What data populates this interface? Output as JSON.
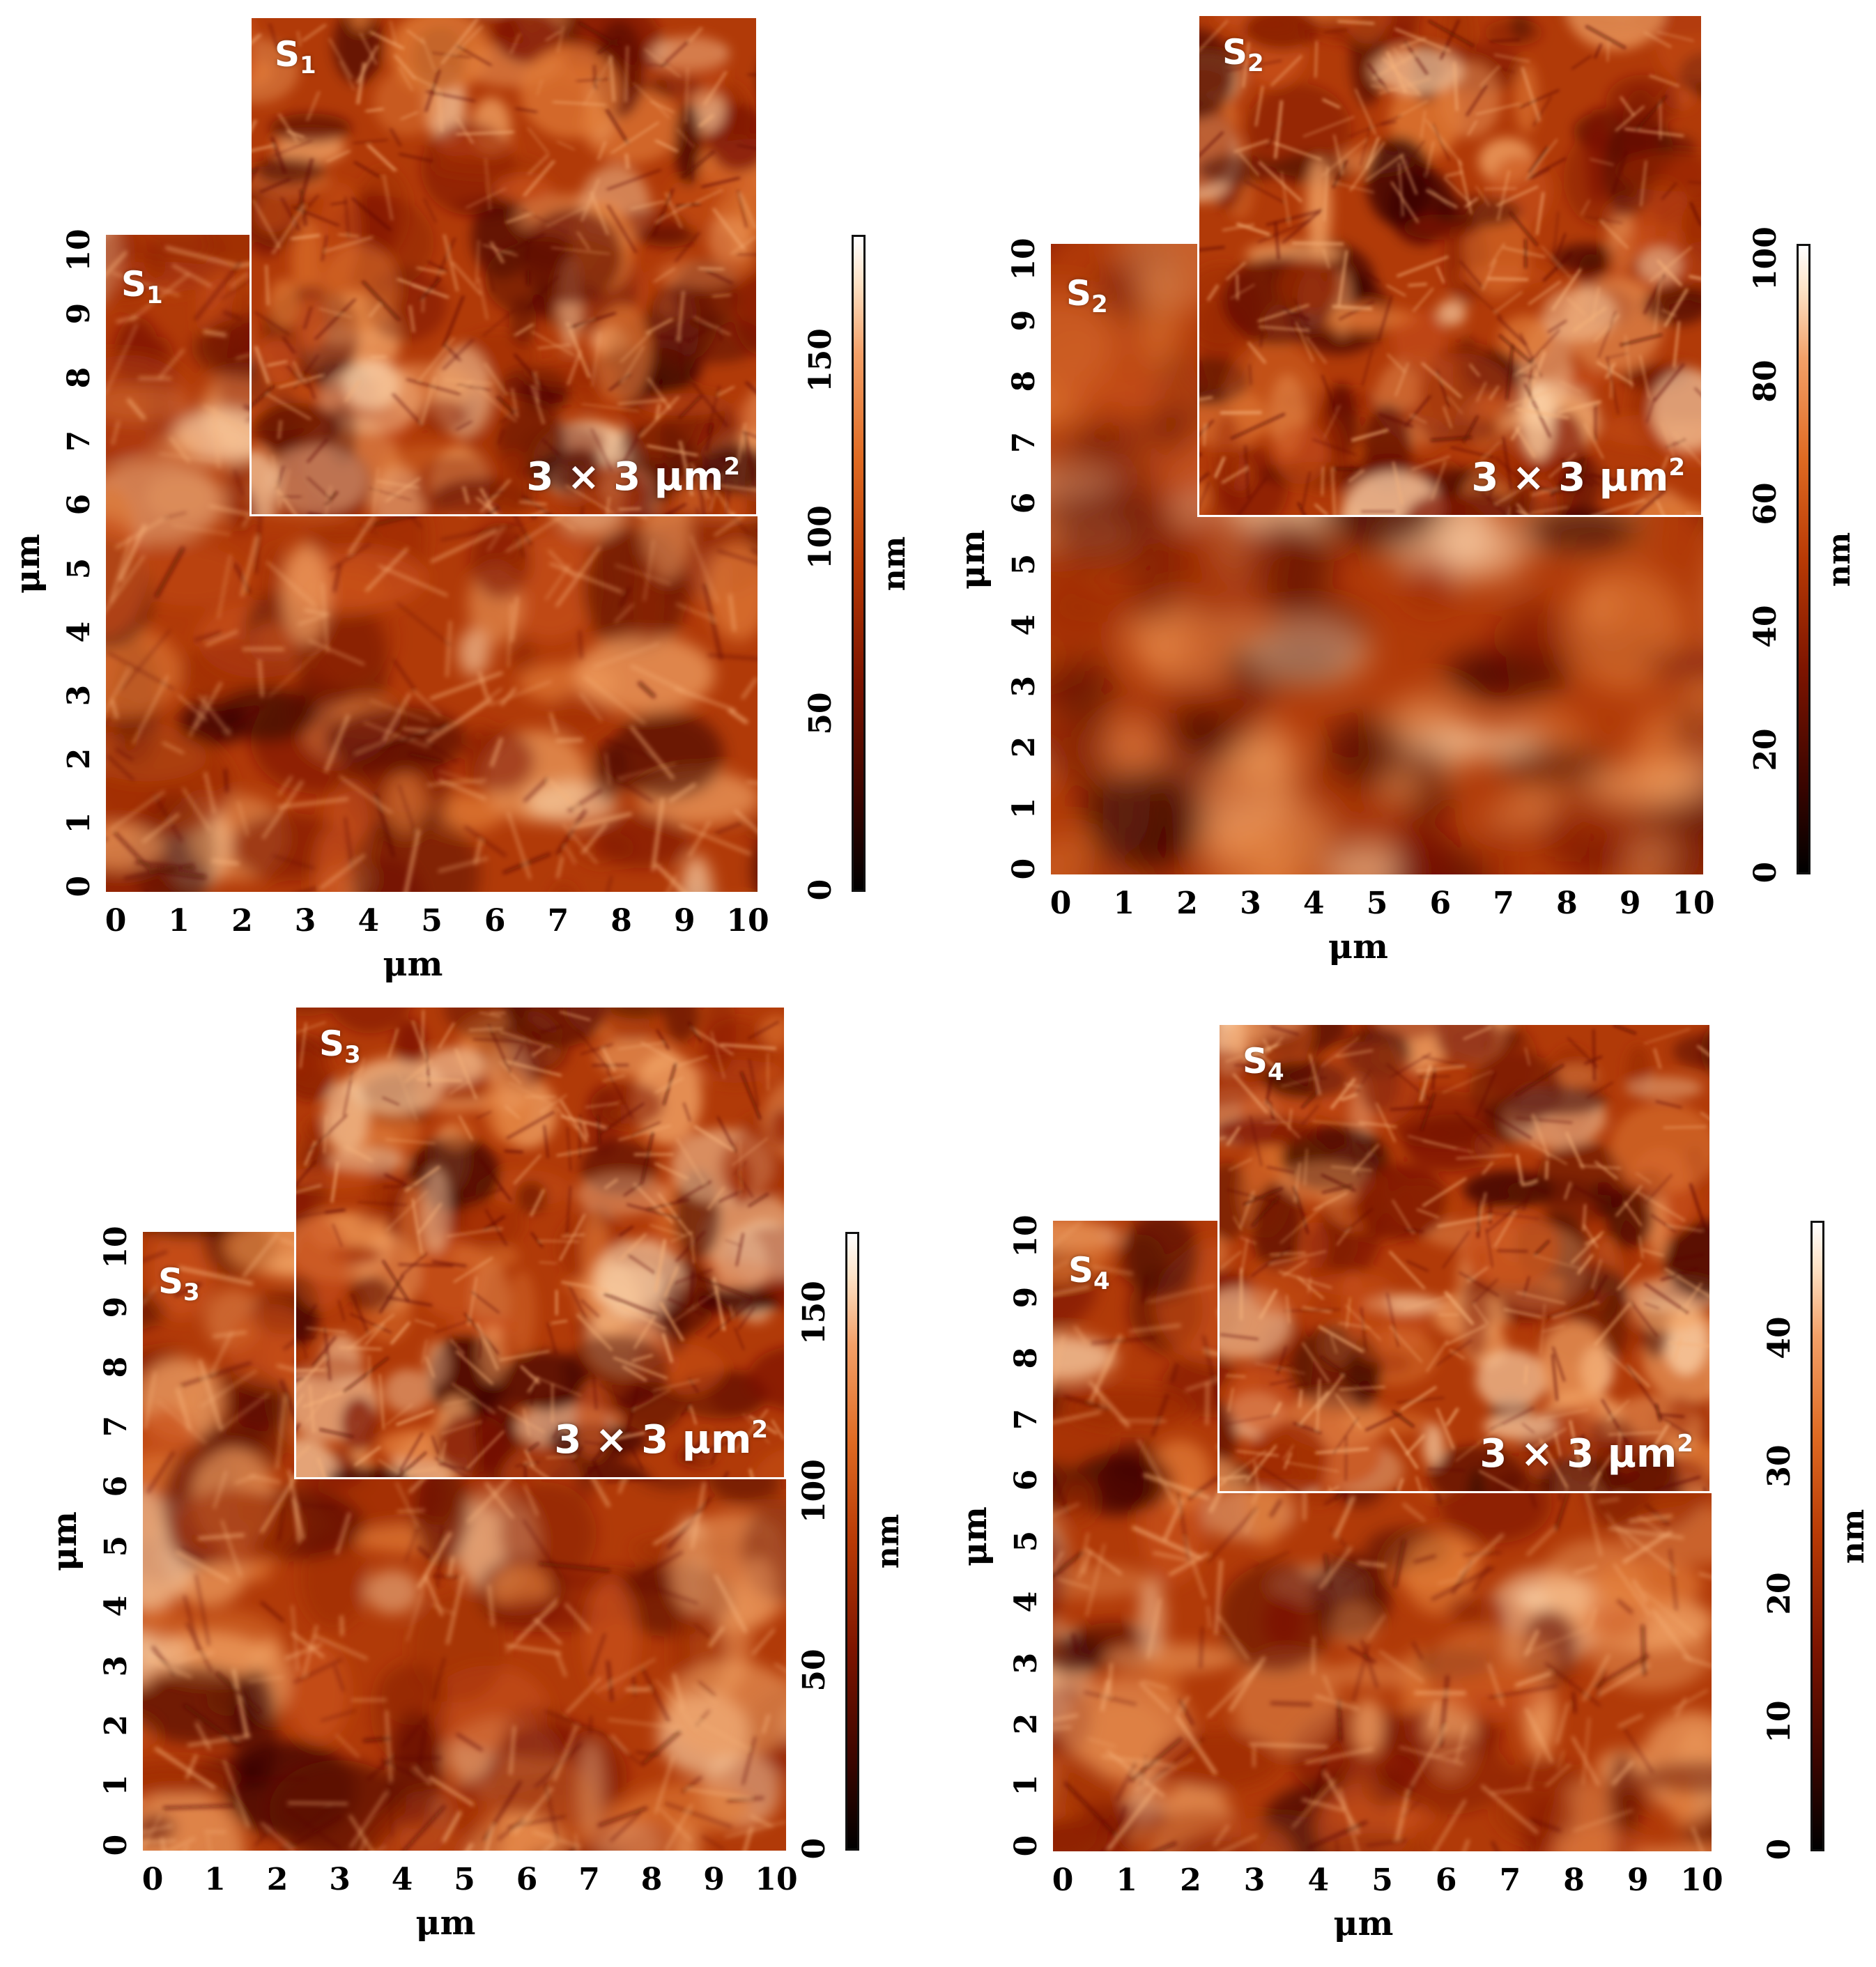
{
  "figure": {
    "panels": [
      {
        "sample_letter": "S",
        "sample_number": "1",
        "scan_label": "3 × 3 μm",
        "scan_label_exp": "2",
        "x_axis_label": "μm",
        "y_axis_label": "μm",
        "x_ticks": [
          "0",
          "1",
          "2",
          "3",
          "4",
          "5",
          "6",
          "7",
          "8",
          "9",
          "10"
        ],
        "y_ticks": [
          "0",
          "1",
          "2",
          "3",
          "4",
          "5",
          "6",
          "7",
          "8",
          "9",
          "10"
        ],
        "colorbar_ticks": [
          "0",
          "50",
          "100",
          "150"
        ],
        "colorbar_unit": "nm",
        "colorbar_max": 185
      },
      {
        "sample_letter": "S",
        "sample_number": "2",
        "scan_label": "3 × 3 μm",
        "scan_label_exp": "2",
        "x_axis_label": "μm",
        "y_axis_label": "μm",
        "x_ticks": [
          "0",
          "1",
          "2",
          "3",
          "4",
          "5",
          "6",
          "7",
          "8",
          "9",
          "10"
        ],
        "y_ticks": [
          "0",
          "1",
          "2",
          "3",
          "4",
          "5",
          "6",
          "7",
          "8",
          "9",
          "10"
        ],
        "colorbar_ticks": [
          "0",
          "20",
          "40",
          "60",
          "80",
          "100"
        ],
        "colorbar_unit": "nm",
        "colorbar_max": 102
      },
      {
        "sample_letter": "S",
        "sample_number": "3",
        "scan_label": "3 × 3 μm",
        "scan_label_exp": "2",
        "x_axis_label": "μm",
        "y_axis_label": "μm",
        "x_ticks": [
          "0",
          "1",
          "2",
          "3",
          "4",
          "5",
          "6",
          "7",
          "8",
          "9",
          "10"
        ],
        "y_ticks": [
          "0",
          "1",
          "2",
          "3",
          "4",
          "5",
          "6",
          "7",
          "8",
          "9",
          "10"
        ],
        "colorbar_ticks": [
          "0",
          "50",
          "100",
          "150"
        ],
        "colorbar_unit": "nm",
        "colorbar_max": 172
      },
      {
        "sample_letter": "S",
        "sample_number": "4",
        "scan_label": "3 × 3 μm",
        "scan_label_exp": "2",
        "x_axis_label": "μm",
        "y_axis_label": "μm",
        "x_ticks": [
          "0",
          "1",
          "2",
          "3",
          "4",
          "5",
          "6",
          "7",
          "8",
          "9",
          "10"
        ],
        "y_ticks": [
          "0",
          "1",
          "2",
          "3",
          "4",
          "5",
          "6",
          "7",
          "8",
          "9",
          "10"
        ],
        "colorbar_ticks": [
          "0",
          "10",
          "20",
          "30",
          "40"
        ],
        "colorbar_unit": "nm",
        "colorbar_max": 49
      }
    ]
  },
  "colors": {
    "colormap": [
      "#000000",
      "#3a0500",
      "#7c1400",
      "#b83a05",
      "#df6a22",
      "#f3a068",
      "#fde2c6",
      "#ffffff"
    ],
    "inset_border": "#ffffff"
  }
}
